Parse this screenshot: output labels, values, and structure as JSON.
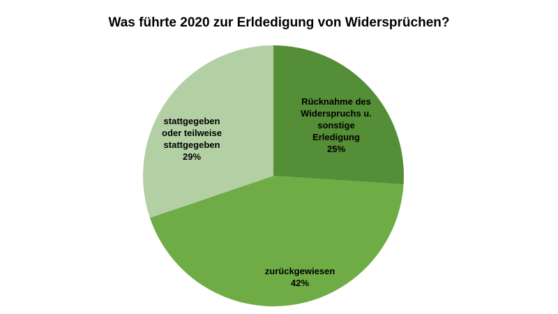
{
  "chart_data": {
    "type": "pie",
    "title": "Was führte 2020 zur Erldedigung von Widersprüchen?",
    "slices": [
      {
        "label_lines": [
          "Rücknahme des",
          "Widerspruchs u.",
          "sonstige",
          "Erledigung"
        ],
        "percent_label": "25%",
        "value": 25,
        "color": "#548e36"
      },
      {
        "label_lines": [
          "zurückgewiesen"
        ],
        "percent_label": "42%",
        "value": 42,
        "color": "#6fac46"
      },
      {
        "label_lines": [
          "stattgegeben",
          "oder teilweise",
          "stattgegeben"
        ],
        "percent_label": "29%",
        "value": 29,
        "color": "#b3d0a4"
      }
    ],
    "start_angle_deg": 0,
    "direction": "clockwise",
    "legend": "none"
  }
}
